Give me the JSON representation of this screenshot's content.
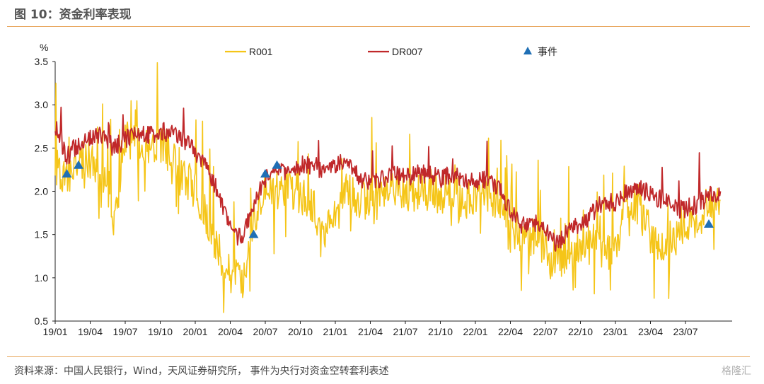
{
  "header": {
    "title": "图 10：资金利率表现"
  },
  "footer": {
    "source": "资料来源：中国人民银行，Wind，天风证券研究所，  事件为央行对资金空转套利表述",
    "watermark": "格隆汇"
  },
  "colors": {
    "R001": "#f5c518",
    "DR007": "#c0282a",
    "events": "#1f6fb5",
    "rule": "#e8a860"
  },
  "chart_data": {
    "type": "line",
    "ylabel": "%",
    "ylim": [
      0.5,
      3.5
    ],
    "yticks": [
      "0.5",
      "1.0",
      "1.5",
      "2.0",
      "2.5",
      "3.0",
      "3.5"
    ],
    "xticks": [
      "19/01",
      "19/04",
      "19/07",
      "19/10",
      "20/01",
      "20/04",
      "20/07",
      "20/10",
      "21/01",
      "21/04",
      "21/07",
      "21/10",
      "22/01",
      "22/04",
      "22/07",
      "22/10",
      "23/01",
      "23/04",
      "23/07"
    ],
    "legend": {
      "position": "top",
      "entries": [
        "R001",
        "DR007",
        "事件"
      ]
    },
    "series": [
      {
        "name": "DR007",
        "anchors": [
          [
            "19/01",
            2.75
          ],
          [
            "19/02",
            2.4
          ],
          [
            "19/03",
            2.55
          ],
          [
            "19/04",
            2.6
          ],
          [
            "19/05",
            2.65
          ],
          [
            "19/06",
            2.5
          ],
          [
            "19/07",
            2.6
          ],
          [
            "19/08",
            2.65
          ],
          [
            "19/09",
            2.65
          ],
          [
            "19/10",
            2.7
          ],
          [
            "19/11",
            2.65
          ],
          [
            "19/12",
            2.6
          ],
          [
            "20/01",
            2.45
          ],
          [
            "20/02",
            2.3
          ],
          [
            "20/03",
            1.95
          ],
          [
            "20/04",
            1.55
          ],
          [
            "20/05",
            1.45
          ],
          [
            "20/06",
            1.85
          ],
          [
            "20/07",
            2.15
          ],
          [
            "20/08",
            2.2
          ],
          [
            "20/09",
            2.25
          ],
          [
            "20/10",
            2.3
          ],
          [
            "20/11",
            2.3
          ],
          [
            "20/12",
            2.25
          ],
          [
            "21/01",
            2.3
          ],
          [
            "21/02",
            2.4
          ],
          [
            "21/03",
            2.15
          ],
          [
            "21/04",
            2.1
          ],
          [
            "21/05",
            2.15
          ],
          [
            "21/06",
            2.2
          ],
          [
            "21/07",
            2.15
          ],
          [
            "21/08",
            2.2
          ],
          [
            "21/09",
            2.2
          ],
          [
            "21/10",
            2.15
          ],
          [
            "21/11",
            2.2
          ],
          [
            "21/12",
            2.15
          ],
          [
            "22/01",
            2.1
          ],
          [
            "22/02",
            2.15
          ],
          [
            "22/03",
            2.05
          ],
          [
            "22/04",
            1.75
          ],
          [
            "22/05",
            1.6
          ],
          [
            "22/06",
            1.65
          ],
          [
            "22/07",
            1.55
          ],
          [
            "22/08",
            1.4
          ],
          [
            "22/09",
            1.55
          ],
          [
            "22/10",
            1.6
          ],
          [
            "22/11",
            1.75
          ],
          [
            "22/12",
            1.9
          ],
          [
            "23/01",
            1.85
          ],
          [
            "23/02",
            2.0
          ],
          [
            "23/03",
            2.05
          ],
          [
            "23/04",
            1.95
          ],
          [
            "23/05",
            1.9
          ],
          [
            "23/06",
            1.8
          ],
          [
            "23/07",
            1.8
          ],
          [
            "23/08",
            1.85
          ],
          [
            "23/09",
            1.95
          ],
          [
            "23/10",
            2.0
          ]
        ]
      },
      {
        "name": "R001",
        "anchors": [
          [
            "19/01",
            2.3
          ],
          [
            "19/02",
            2.1
          ],
          [
            "19/03",
            2.35
          ],
          [
            "19/04",
            2.35
          ],
          [
            "19/05",
            2.3
          ],
          [
            "19/06",
            1.55
          ],
          [
            "19/07",
            2.6
          ],
          [
            "19/08",
            2.55
          ],
          [
            "19/09",
            2.5
          ],
          [
            "19/10",
            2.55
          ],
          [
            "19/11",
            2.45
          ],
          [
            "19/12",
            2.2
          ],
          [
            "20/01",
            2.0
          ],
          [
            "20/02",
            1.7
          ],
          [
            "20/03",
            1.3
          ],
          [
            "20/04",
            1.05
          ],
          [
            "20/05",
            0.95
          ],
          [
            "20/06",
            1.7
          ],
          [
            "20/07",
            2.05
          ],
          [
            "20/08",
            2.0
          ],
          [
            "20/09",
            2.05
          ],
          [
            "20/10",
            1.95
          ],
          [
            "20/11",
            1.85
          ],
          [
            "20/12",
            1.5
          ],
          [
            "21/01",
            1.7
          ],
          [
            "21/02",
            2.0
          ],
          [
            "21/03",
            1.9
          ],
          [
            "21/04",
            1.9
          ],
          [
            "21/05",
            2.0
          ],
          [
            "21/06",
            2.05
          ],
          [
            "21/07",
            2.0
          ],
          [
            "21/08",
            1.95
          ],
          [
            "21/09",
            2.05
          ],
          [
            "21/10",
            1.95
          ],
          [
            "21/11",
            2.0
          ],
          [
            "21/12",
            1.9
          ],
          [
            "22/01",
            1.9
          ],
          [
            "22/02",
            1.95
          ],
          [
            "22/03",
            1.9
          ],
          [
            "22/04",
            1.45
          ],
          [
            "22/05",
            1.45
          ],
          [
            "22/06",
            1.5
          ],
          [
            "22/07",
            1.35
          ],
          [
            "22/08",
            1.15
          ],
          [
            "22/09",
            1.3
          ],
          [
            "22/10",
            1.35
          ],
          [
            "22/11",
            1.55
          ],
          [
            "22/12",
            1.3
          ],
          [
            "23/01",
            1.3
          ],
          [
            "23/02",
            1.9
          ],
          [
            "23/03",
            1.85
          ],
          [
            "23/04",
            1.5
          ],
          [
            "23/05",
            1.4
          ],
          [
            "23/06",
            1.45
          ],
          [
            "23/07",
            1.55
          ],
          [
            "23/08",
            1.65
          ],
          [
            "23/09",
            1.85
          ],
          [
            "23/10",
            1.9
          ]
        ]
      }
    ],
    "events": [
      {
        "x": "19/02",
        "y": 2.2
      },
      {
        "x": "19/03",
        "y": 2.3
      },
      {
        "x": "20/06",
        "y": 1.5
      },
      {
        "x": "20/07",
        "y": 2.2
      },
      {
        "x": "20/08",
        "y": 2.3
      },
      {
        "x": "23/09",
        "y": 1.62
      }
    ]
  }
}
